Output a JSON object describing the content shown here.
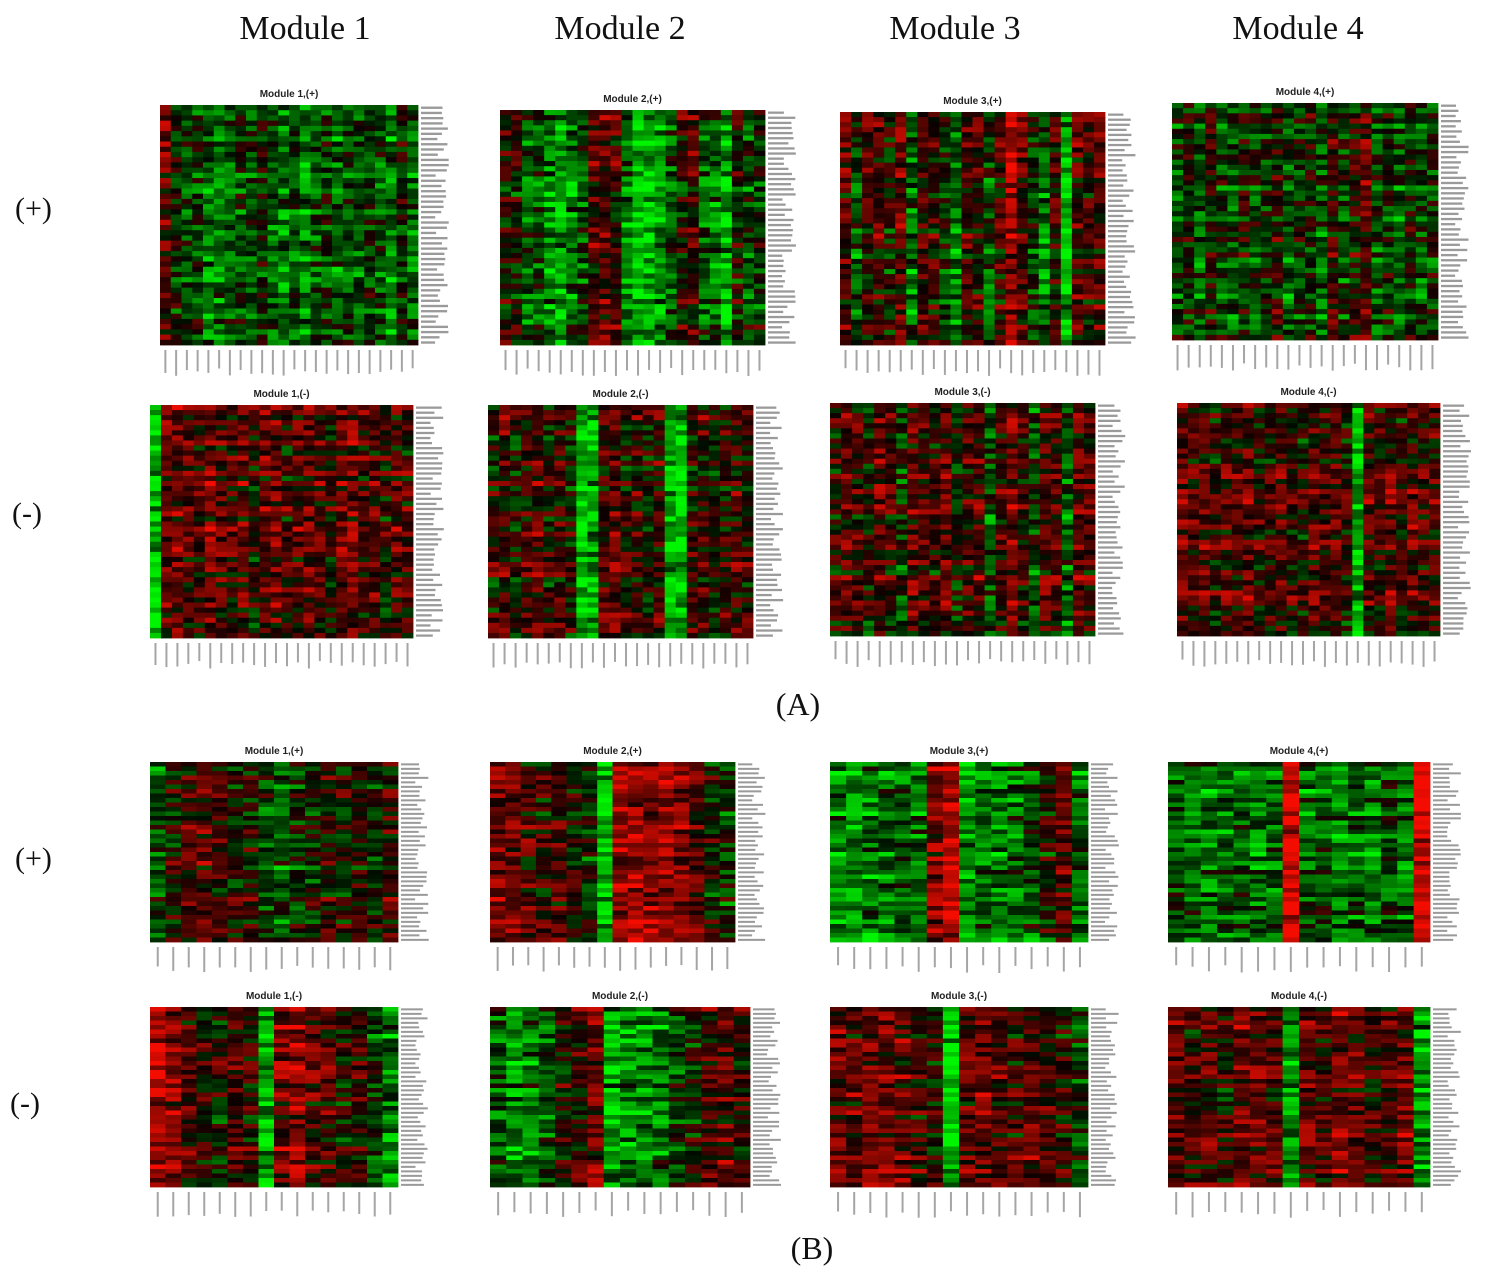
{
  "figure": {
    "module_headers": [
      "Module 1",
      "Module 2",
      "Module 3",
      "Module 4"
    ],
    "row_labels": {
      "plus": "(+)",
      "minus": "(-)"
    },
    "panel_labels": {
      "a": "(A)",
      "b": "(B)"
    }
  },
  "colors": {
    "high": "#ff0000",
    "mid": "#000000",
    "low": "#00ff00"
  },
  "chart_data": [
    {
      "type": "heatmap",
      "panel": "A",
      "title": "Module 1,(+)",
      "rows": 46,
      "cols": 24,
      "col_bias": [
        0.3,
        -0.1,
        -0.3,
        -0.2,
        -0.5,
        -0.5,
        -0.3,
        -0.2,
        -0.3,
        -0.1,
        -0.4,
        -0.5,
        -0.3,
        -0.5,
        -0.3,
        -0.2,
        -0.4,
        -0.2,
        -0.3,
        -0.2,
        -0.3,
        -0.5,
        -0.1,
        -0.4
      ]
    },
    {
      "type": "heatmap",
      "panel": "A",
      "title": "Module 2,(+)",
      "rows": 46,
      "cols": 24,
      "col_bias": [
        0.1,
        0.0,
        -0.3,
        -0.2,
        -0.5,
        -0.6,
        -0.4,
        -0.2,
        0.3,
        0.3,
        0.2,
        -0.4,
        -0.7,
        -0.8,
        -0.6,
        -0.3,
        0.1,
        0.2,
        -0.3,
        -0.4,
        -0.6,
        0.0,
        -0.2,
        -0.1
      ]
    },
    {
      "type": "heatmap",
      "panel": "A",
      "title": "Module 3,(+)",
      "rows": 46,
      "cols": 24,
      "col_bias": [
        0.2,
        -0.3,
        0.1,
        0.2,
        -0.1,
        0.3,
        -0.4,
        0.2,
        0.1,
        -0.2,
        -0.5,
        0.2,
        0.1,
        -0.3,
        0.1,
        0.6,
        0.2,
        -0.2,
        -0.5,
        0.1,
        -0.7,
        0.2,
        0.1,
        0.2
      ]
    },
    {
      "type": "heatmap",
      "panel": "A",
      "title": "Module 4,(+)",
      "rows": 46,
      "cols": 24,
      "col_bias": [
        -0.2,
        0.0,
        -0.3,
        0.1,
        -0.2,
        -0.3,
        0.0,
        -0.2,
        -0.1,
        0.1,
        -0.3,
        -0.1,
        0.0,
        -0.3,
        0.2,
        -0.2,
        0.1,
        0.3,
        -0.2,
        -0.1,
        -0.3,
        0.0,
        -0.2,
        -0.1
      ]
    },
    {
      "type": "heatmap",
      "panel": "A",
      "title": "Module 1,(-)",
      "rows": 46,
      "cols": 24,
      "col_bias": [
        -0.8,
        0.3,
        0.4,
        0.3,
        0.2,
        0.4,
        0.3,
        0.2,
        0.3,
        0.1,
        0.3,
        0.4,
        0.2,
        0.3,
        0.4,
        0.2,
        0.1,
        0.3,
        0.4,
        0.2,
        0.3,
        0.1,
        0.3,
        0.2
      ]
    },
    {
      "type": "heatmap",
      "panel": "A",
      "title": "Module 2,(-)",
      "rows": 46,
      "cols": 24,
      "col_bias": [
        0.1,
        0.2,
        0.0,
        0.2,
        0.3,
        0.1,
        0.2,
        0.0,
        -0.8,
        -0.7,
        0.2,
        0.3,
        0.1,
        0.2,
        0.0,
        0.2,
        -0.7,
        -0.8,
        0.1,
        0.2,
        0.0,
        0.1,
        0.2,
        0.1
      ]
    },
    {
      "type": "heatmap",
      "panel": "A",
      "title": "Module 3,(-)",
      "rows": 46,
      "cols": 24,
      "col_bias": [
        0.1,
        0.3,
        0.2,
        0.0,
        0.3,
        0.2,
        -0.2,
        0.3,
        0.2,
        0.1,
        0.3,
        -0.1,
        0.2,
        0.3,
        -0.3,
        0.2,
        0.4,
        0.1,
        -0.2,
        0.3,
        0.2,
        -0.4,
        0.3,
        0.2
      ]
    },
    {
      "type": "heatmap",
      "panel": "A",
      "title": "Module 4,(-)",
      "rows": 46,
      "cols": 24,
      "col_bias": [
        0.4,
        0.2,
        0.3,
        0.1,
        0.3,
        0.2,
        0.4,
        0.1,
        0.2,
        0.3,
        0.2,
        0.1,
        0.3,
        0.2,
        0.3,
        0.1,
        -0.7,
        0.3,
        0.2,
        0.3,
        0.1,
        0.3,
        0.2,
        0.3
      ]
    },
    {
      "type": "heatmap",
      "panel": "B",
      "title": "Module 1,(+)",
      "rows": 40,
      "cols": 16,
      "col_bias": [
        -0.3,
        0.1,
        0.2,
        0.3,
        0.2,
        0.0,
        0.1,
        -0.2,
        -0.3,
        -0.1,
        0.0,
        0.1,
        0.0,
        0.1,
        -0.1,
        0.2
      ]
    },
    {
      "type": "heatmap",
      "panel": "B",
      "title": "Module 2,(+)",
      "rows": 40,
      "cols": 16,
      "col_bias": [
        0.4,
        0.3,
        0.2,
        0.1,
        0.2,
        0.0,
        -0.1,
        -0.8,
        0.6,
        0.6,
        0.6,
        0.5,
        0.5,
        0.3,
        0.0,
        -0.2
      ]
    },
    {
      "type": "heatmap",
      "panel": "B",
      "title": "Module 3,(+)",
      "rows": 40,
      "cols": 16,
      "col_bias": [
        -0.5,
        -0.6,
        -0.5,
        -0.4,
        -0.3,
        -0.4,
        0.4,
        0.7,
        -0.6,
        -0.5,
        -0.5,
        -0.4,
        -0.3,
        0.0,
        0.3,
        -0.4
      ]
    },
    {
      "type": "heatmap",
      "panel": "B",
      "title": "Module 4,(+)",
      "rows": 40,
      "cols": 16,
      "col_bias": [
        -0.3,
        -0.4,
        -0.5,
        -0.4,
        -0.3,
        -0.5,
        -0.4,
        0.8,
        -0.4,
        -0.3,
        -0.5,
        -0.4,
        -0.5,
        -0.3,
        -0.4,
        0.8
      ]
    },
    {
      "type": "heatmap",
      "panel": "B",
      "title": "Module 1,(-)",
      "rows": 40,
      "cols": 16,
      "col_bias": [
        0.6,
        0.5,
        0.2,
        0.1,
        0.0,
        0.2,
        0.1,
        -0.7,
        0.4,
        0.5,
        0.3,
        0.2,
        0.0,
        0.1,
        -0.2,
        -0.5
      ]
    },
    {
      "type": "heatmap",
      "panel": "B",
      "title": "Module 2,(-)",
      "rows": 40,
      "cols": 16,
      "col_bias": [
        -0.3,
        -0.5,
        -0.4,
        -0.3,
        0.1,
        0.2,
        0.4,
        -0.6,
        -0.6,
        -0.5,
        -0.4,
        -0.2,
        0.0,
        0.2,
        0.3,
        0.2
      ]
    },
    {
      "type": "heatmap",
      "panel": "B",
      "title": "Module 3,(-)",
      "rows": 40,
      "cols": 16,
      "col_bias": [
        0.4,
        0.3,
        0.5,
        0.4,
        0.3,
        0.2,
        0.1,
        -0.8,
        0.3,
        0.4,
        0.3,
        0.2,
        0.3,
        0.2,
        0.1,
        -0.2
      ]
    },
    {
      "type": "heatmap",
      "panel": "B",
      "title": "Module 4,(-)",
      "rows": 40,
      "cols": 16,
      "col_bias": [
        0.3,
        0.2,
        0.3,
        0.1,
        0.4,
        0.3,
        0.2,
        -0.6,
        0.3,
        0.2,
        0.4,
        0.3,
        0.1,
        0.2,
        0.4,
        -0.6
      ]
    }
  ]
}
